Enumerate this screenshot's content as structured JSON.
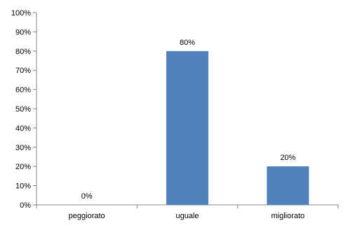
{
  "chart_data": {
    "type": "bar",
    "categories": [
      "peggiorato",
      "uguale",
      "migliorato"
    ],
    "values": [
      0,
      80,
      20
    ],
    "value_labels": [
      "0%",
      "80%",
      "20%"
    ],
    "title": "",
    "xlabel": "",
    "ylabel": "",
    "ylim": [
      0,
      100
    ],
    "y_ticks": [
      "0%",
      "10%",
      "20%",
      "30%",
      "40%",
      "50%",
      "60%",
      "70%",
      "80%",
      "90%",
      "100%"
    ],
    "grid": false,
    "legend": "none",
    "bar_color": "#4f81bd",
    "axis_color": "#868686"
  }
}
